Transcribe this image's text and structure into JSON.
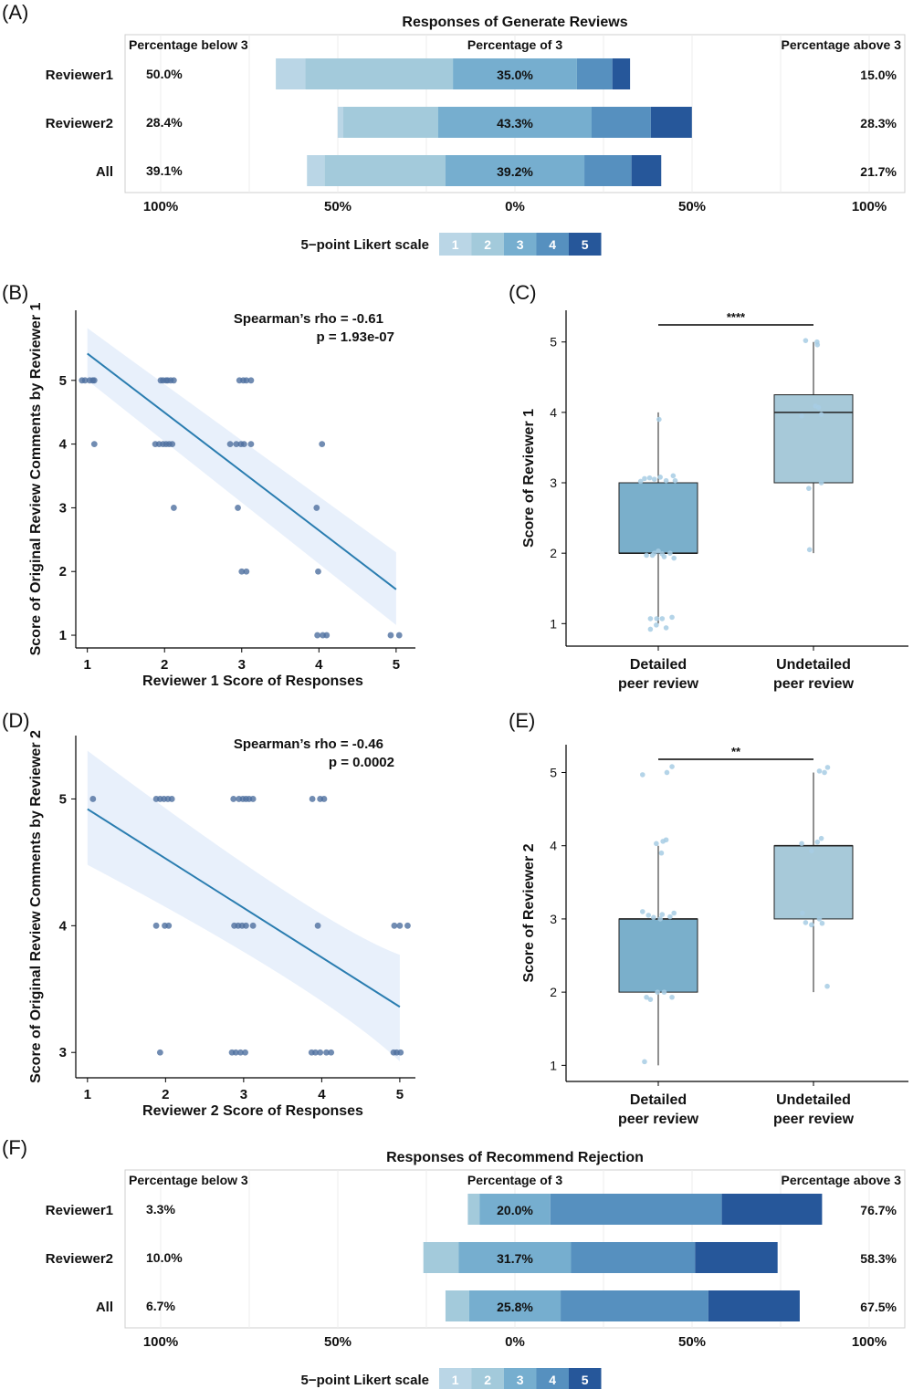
{
  "palette": {
    "likert": [
      "#bad6e6",
      "#a3cadb",
      "#76aecf",
      "#5690bf",
      "#26579a"
    ],
    "box_detailed": "#7aafcb",
    "box_undetailed": "#a7c9d9",
    "scatter_dot": "#4d6f9f",
    "fit_line": "#2a7db0",
    "ci_band": "#e8f0fb",
    "jitter": "#a7cde4"
  },
  "chart_data": [
    {
      "panel": "(A)",
      "type": "bar",
      "subtype": "diverging-stacked-likert",
      "title": "Responses of Generate Reviews",
      "header_left": "Percentage below 3",
      "header_mid": "Percentage of 3",
      "header_right": "Percentage above 3",
      "x_ticks": [
        "100%",
        "50%",
        "0%",
        "50%",
        "100%"
      ],
      "xlim": [
        -100,
        100
      ],
      "legend_title": "5−point Likert scale",
      "legend_labels": [
        "1",
        "2",
        "3",
        "4",
        "5"
      ],
      "rows": [
        {
          "name": "Reviewer1",
          "below": "50.0%",
          "mid": "35.0%",
          "above": "15.0%",
          "segments": [
            8.3,
            41.7,
            35.0,
            10.0,
            5.0
          ]
        },
        {
          "name": "Reviewer2",
          "below": "28.4%",
          "mid": "43.3%",
          "above": "28.3%",
          "segments": [
            1.6,
            26.8,
            43.3,
            16.7,
            11.6
          ]
        },
        {
          "name": "All",
          "below": "39.1%",
          "mid": "39.2%",
          "above": "21.7%",
          "segments": [
            5.0,
            34.1,
            39.2,
            13.3,
            8.4
          ]
        }
      ]
    },
    {
      "panel": "(B)",
      "type": "scatter",
      "annotation": [
        "Spearman’s rho = -0.61",
        "p = 1.93e-07"
      ],
      "xlabel": "Reviewer 1 Score of Responses",
      "ylabel": "Score of Original Review Comments by Reviewer 1",
      "x_ticks": [
        "1",
        "2",
        "3",
        "4",
        "5"
      ],
      "y_ticks": [
        "1",
        "2",
        "3",
        "4",
        "5"
      ],
      "xlim": [
        0.85,
        5.25
      ],
      "ylim": [
        0.8,
        6.1
      ],
      "fit": {
        "x": [
          1,
          5
        ],
        "y": [
          5.42,
          1.72
        ],
        "ci_upper_end": [
          5.82,
          2.3
        ],
        "ci_lower_end": [
          5.0,
          1.16
        ],
        "ci_mid": 3.0
      },
      "points": [
        [
          0.93,
          5
        ],
        [
          0.97,
          5
        ],
        [
          1.03,
          5
        ],
        [
          1.07,
          5
        ],
        [
          1.09,
          5
        ],
        [
          1.95,
          5
        ],
        [
          1.98,
          5
        ],
        [
          2.02,
          5
        ],
        [
          2.04,
          5
        ],
        [
          2.08,
          5
        ],
        [
          2.12,
          5
        ],
        [
          2.97,
          5
        ],
        [
          3.02,
          5
        ],
        [
          3.06,
          5
        ],
        [
          3.12,
          5
        ],
        [
          1.09,
          4
        ],
        [
          1.88,
          4
        ],
        [
          1.93,
          4
        ],
        [
          1.98,
          4
        ],
        [
          2.02,
          4
        ],
        [
          2.06,
          4
        ],
        [
          2.1,
          4
        ],
        [
          2.85,
          4
        ],
        [
          2.93,
          4
        ],
        [
          2.99,
          4
        ],
        [
          3.03,
          4
        ],
        [
          3.12,
          4
        ],
        [
          4.04,
          4
        ],
        [
          2.12,
          3
        ],
        [
          2.95,
          3
        ],
        [
          3.97,
          3
        ],
        [
          3.0,
          2
        ],
        [
          3.06,
          2
        ],
        [
          3.99,
          2
        ],
        [
          3.98,
          1
        ],
        [
          4.05,
          1
        ],
        [
          4.1,
          1
        ],
        [
          4.93,
          1
        ],
        [
          5.04,
          1
        ]
      ]
    },
    {
      "panel": "(C)",
      "type": "box",
      "xlabel_lines": [
        [
          "Detailed",
          "peer review"
        ],
        [
          "Undetailed",
          "peer review"
        ]
      ],
      "ylabel": "Score of Reviewer 1",
      "y_ticks": [
        "1",
        "2",
        "3",
        "4",
        "5"
      ],
      "ylim": [
        0.68,
        5.45
      ],
      "significance": "****",
      "boxes": [
        {
          "q1": 2,
          "median": 2,
          "q3": 3,
          "whisker_low": 1,
          "whisker_high": 4
        },
        {
          "q1": 3,
          "median": 4,
          "q3": 4.25,
          "whisker_low": 2,
          "whisker_high": 5
        }
      ],
      "jitter": [
        [
          [
            -0.45,
            3.02
          ],
          [
            -0.35,
            3.06
          ],
          [
            -0.22,
            3.07
          ],
          [
            -0.1,
            3.05
          ],
          [
            0.05,
            3.08
          ],
          [
            0.2,
            3.03
          ],
          [
            0.38,
            3.1
          ],
          [
            0.43,
            3.03
          ],
          [
            -0.3,
            1.97
          ],
          [
            -0.1,
            2.0
          ],
          [
            0.1,
            1.99
          ],
          [
            0.3,
            2.0
          ],
          [
            0.4,
            1.93
          ],
          [
            -0.15,
            1.97
          ],
          [
            0.15,
            1.95
          ],
          [
            0.0,
            2.03
          ],
          [
            -0.2,
            1.07
          ],
          [
            -0.04,
            1.07
          ],
          [
            0.1,
            1.07
          ],
          [
            0.35,
            1.09
          ],
          [
            -0.2,
            0.92
          ],
          [
            0.2,
            0.94
          ],
          [
            -0.05,
            0.98
          ],
          [
            0.02,
            3.9
          ]
        ],
        [
          [
            -0.2,
            5.02
          ],
          [
            0.09,
            5.0
          ],
          [
            0.1,
            4.96
          ],
          [
            -0.3,
            3.95
          ],
          [
            0.05,
            4.09
          ],
          [
            0.13,
            4.07
          ],
          [
            0.2,
            3.97
          ],
          [
            -0.12,
            2.92
          ],
          [
            0.2,
            3.0
          ],
          [
            -0.1,
            2.05
          ]
        ]
      ]
    },
    {
      "panel": "(D)",
      "type": "scatter",
      "annotation": [
        "Spearman’s rho = -0.46",
        "p = 0.0002"
      ],
      "xlabel": "Reviewer 2 Score of Responses",
      "ylabel": "Score of Original Review Comments by Reviewer 2",
      "x_ticks": [
        "1",
        "2",
        "3",
        "4",
        "5"
      ],
      "y_ticks": [
        "3",
        "4",
        "5"
      ],
      "xlim": [
        0.85,
        5.2
      ],
      "ylim": [
        2.8,
        5.5
      ],
      "fit": {
        "x": [
          1,
          5
        ],
        "y": [
          4.92,
          3.36
        ],
        "ci_upper_end": [
          5.38,
          3.77
        ],
        "ci_lower_end": [
          4.48,
          2.93
        ],
        "ci_mid": 4.0
      },
      "points": [
        [
          1.07,
          5
        ],
        [
          1.88,
          5
        ],
        [
          1.93,
          5
        ],
        [
          1.98,
          5
        ],
        [
          2.03,
          5
        ],
        [
          2.08,
          5
        ],
        [
          2.87,
          5
        ],
        [
          2.94,
          5
        ],
        [
          2.99,
          5
        ],
        [
          3.03,
          5
        ],
        [
          3.07,
          5
        ],
        [
          3.12,
          5
        ],
        [
          3.88,
          5
        ],
        [
          3.98,
          5
        ],
        [
          4.03,
          5
        ],
        [
          1.88,
          4
        ],
        [
          1.99,
          4
        ],
        [
          2.04,
          4
        ],
        [
          2.88,
          4
        ],
        [
          2.93,
          4
        ],
        [
          2.98,
          4
        ],
        [
          3.03,
          4
        ],
        [
          3.12,
          4
        ],
        [
          3.95,
          4
        ],
        [
          4.93,
          4
        ],
        [
          5.0,
          4
        ],
        [
          5.1,
          4
        ],
        [
          1.93,
          3
        ],
        [
          2.85,
          3
        ],
        [
          2.9,
          3
        ],
        [
          2.96,
          3
        ],
        [
          3.02,
          3
        ],
        [
          3.87,
          3
        ],
        [
          3.92,
          3
        ],
        [
          3.98,
          3
        ],
        [
          4.06,
          3
        ],
        [
          4.12,
          3
        ],
        [
          4.92,
          3
        ],
        [
          4.96,
          3
        ],
        [
          5.01,
          3
        ]
      ]
    },
    {
      "panel": "(E)",
      "type": "box",
      "xlabel_lines": [
        [
          "Detailed",
          "peer review"
        ],
        [
          "Undetailed",
          "peer review"
        ]
      ],
      "ylabel": "Score of Reviewer 2",
      "y_ticks": [
        "1",
        "2",
        "3",
        "4",
        "5"
      ],
      "ylim": [
        0.78,
        5.38
      ],
      "significance": "**",
      "boxes": [
        {
          "q1": 2,
          "median": 3,
          "q3": 3,
          "whisker_low": 1,
          "whisker_high": 4
        },
        {
          "q1": 3,
          "median": 4,
          "q3": 4,
          "whisker_low": 2,
          "whisker_high": 5
        }
      ],
      "jitter": [
        [
          [
            -0.4,
            4.97
          ],
          [
            0.22,
            5.0
          ],
          [
            0.35,
            5.08
          ],
          [
            -0.05,
            4.03
          ],
          [
            0.12,
            4.06
          ],
          [
            0.2,
            4.08
          ],
          [
            0.08,
            3.9
          ],
          [
            -0.4,
            3.1
          ],
          [
            -0.25,
            3.05
          ],
          [
            -0.12,
            3.02
          ],
          [
            0.1,
            3.06
          ],
          [
            0.3,
            3.03
          ],
          [
            0.4,
            3.08
          ],
          [
            0.05,
            3.0
          ],
          [
            -0.3,
            1.93
          ],
          [
            -0.2,
            1.9
          ],
          [
            0.15,
            2.0
          ],
          [
            0.35,
            1.93
          ],
          [
            -0.02,
            2.0
          ],
          [
            -0.35,
            1.05
          ]
        ],
        [
          [
            0.15,
            5.02
          ],
          [
            0.28,
            5.0
          ],
          [
            0.36,
            5.07
          ],
          [
            -0.3,
            4.03
          ],
          [
            -0.05,
            3.93
          ],
          [
            0.1,
            4.05
          ],
          [
            0.2,
            4.1
          ],
          [
            -0.28,
            3.08
          ],
          [
            -0.2,
            2.95
          ],
          [
            -0.05,
            2.92
          ],
          [
            0.15,
            3.0
          ],
          [
            0.22,
            2.94
          ],
          [
            0.35,
            2.08
          ]
        ]
      ]
    },
    {
      "panel": "(F)",
      "type": "bar",
      "subtype": "diverging-stacked-likert",
      "title": "Responses of Recommend Rejection",
      "header_left": "Percentage below 3",
      "header_mid": "Percentage of 3",
      "header_right": "Percentage above 3",
      "x_ticks": [
        "100%",
        "50%",
        "0%",
        "50%",
        "100%"
      ],
      "xlim": [
        -100,
        100
      ],
      "legend_title": "5−point Likert scale",
      "legend_labels": [
        "1",
        "2",
        "3",
        "4",
        "5"
      ],
      "rows": [
        {
          "name": "Reviewer1",
          "below": "3.3%",
          "mid": "20.0%",
          "above": "76.7%",
          "segments": [
            0,
            3.3,
            20.0,
            48.4,
            28.3
          ]
        },
        {
          "name": "Reviewer2",
          "below": "10.0%",
          "mid": "31.7%",
          "above": "58.3%",
          "segments": [
            0,
            10.0,
            31.7,
            35.0,
            23.3
          ]
        },
        {
          "name": "All",
          "below": "6.7%",
          "mid": "25.8%",
          "above": "67.5%",
          "segments": [
            0,
            6.7,
            25.8,
            41.7,
            25.8
          ]
        }
      ]
    }
  ]
}
